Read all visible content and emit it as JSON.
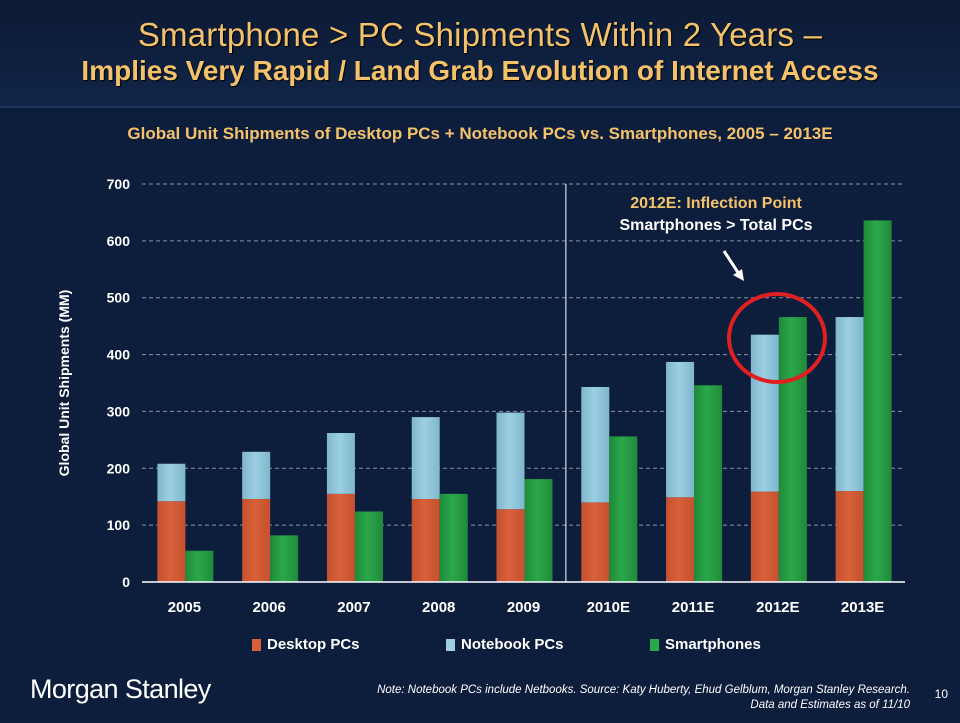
{
  "header": {
    "title": "Smartphone > PC Shipments Within 2 Years –",
    "subtitle": "Implies Very Rapid / Land Grab Evolution of Internet Access"
  },
  "chart_data": {
    "type": "bar",
    "title": "Global Unit Shipments of Desktop PCs + Notebook PCs vs. Smartphones, 2005 – 2013E",
    "xlabel": "",
    "ylabel": "Global Unit Shipments (MM)",
    "ylim": [
      0,
      700
    ],
    "yticks": [
      0,
      100,
      200,
      300,
      400,
      500,
      600,
      700
    ],
    "grid": true,
    "legend_position": "bottom",
    "categories": [
      "2005",
      "2006",
      "2007",
      "2008",
      "2009",
      "2010E",
      "2011E",
      "2012E",
      "2013E"
    ],
    "series": [
      {
        "name": "Desktop PCs",
        "color": "#d9603a",
        "stack": "pc",
        "values": [
          142,
          146,
          155,
          146,
          128,
          140,
          149,
          159,
          160
        ]
      },
      {
        "name": "Notebook PCs",
        "color": "#9ccfe2",
        "stack": "pc",
        "values": [
          66,
          83,
          107,
          144,
          170,
          203,
          238,
          276,
          306
        ]
      },
      {
        "name": "Smartphones",
        "color": "#2ba84a",
        "stack": "smartphone",
        "values": [
          55,
          82,
          124,
          155,
          181,
          256,
          346,
          466,
          636
        ]
      }
    ],
    "annotation": {
      "line1": "2012E: Inflection Point",
      "line2": "Smartphones > Total PCs",
      "highlight_category": "2012E"
    }
  },
  "footer": {
    "logo": "Morgan Stanley",
    "note_line1": "Note: Notebook PCs include Netbooks. Source: Katy Huberty, Ehud Gelblum, Morgan Stanley Research.",
    "note_line2": "Data and Estimates as of 11/10",
    "page_number": "10"
  },
  "colors": {
    "background": "#0d1d3c",
    "title": "#f3c26a",
    "circle": "#e02020"
  }
}
